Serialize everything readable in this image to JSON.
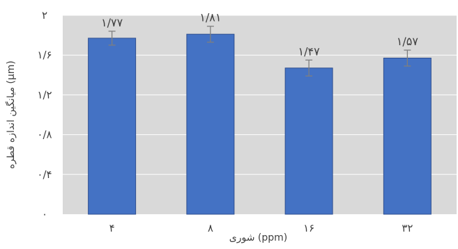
{
  "chart_data": {
    "type": "bar",
    "title": "",
    "xlabel": "شوری (ppm)",
    "ylabel": "میانگین اندازه قطره (µm)",
    "categories": [
      "۴",
      "۸",
      "۱۶",
      "۳۲"
    ],
    "values": [
      1.77,
      1.81,
      1.47,
      1.57
    ],
    "value_labels": [
      "۱/۷۷",
      "۱/۸۱",
      "۱/۴۷",
      "۱/۵۷"
    ],
    "error": [
      0.07,
      0.08,
      0.08,
      0.08
    ],
    "ylim": [
      0,
      2
    ],
    "yticks": [
      0,
      0.4,
      0.8,
      1.2,
      1.6,
      2
    ],
    "ytick_labels": [
      "۰",
      "۰/۴",
      "۰/۸",
      "۱/۲",
      "۱/۶",
      "۲"
    ],
    "grid": true,
    "colors": {
      "bar_fill": "#4472c4",
      "bar_stroke": "#2f4f8f",
      "plot_background": "#d9d9d9",
      "gridline": "#ffffff",
      "error_bar": "#7f7f7f",
      "text": "#404040"
    }
  }
}
